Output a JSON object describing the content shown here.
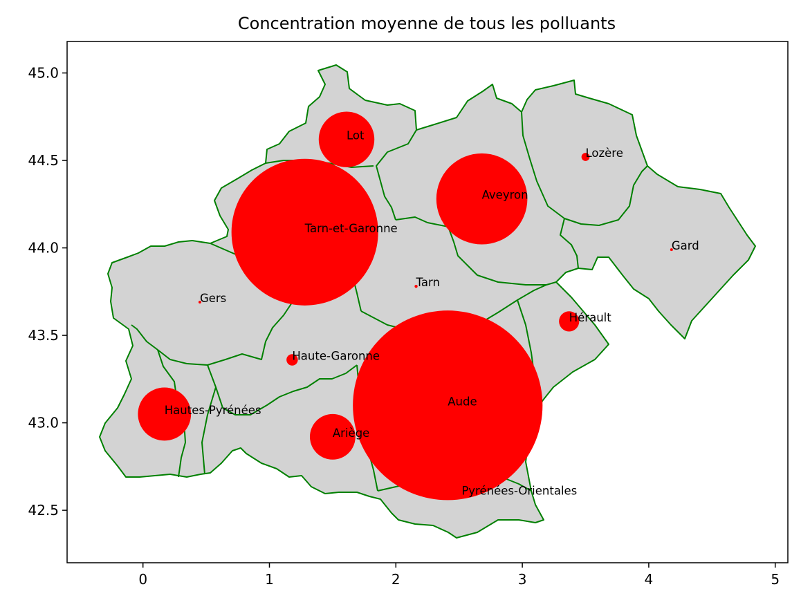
{
  "chart_data": {
    "type": "scatter",
    "title": "Concentration moyenne de tous les polluants",
    "xlabel": "",
    "ylabel": "",
    "xlim": [
      -0.6,
      5.1
    ],
    "ylim": [
      42.2,
      45.18
    ],
    "xticks": [
      0,
      1,
      2,
      3,
      4,
      5
    ],
    "xtick_labels": [
      "0",
      "1",
      "2",
      "3",
      "4",
      "5"
    ],
    "yticks": [
      42.5,
      43.0,
      43.5,
      44.0,
      44.5,
      45.0
    ],
    "ytick_labels": [
      "42.5",
      "43.0",
      "43.5",
      "44.0",
      "44.5",
      "45.0"
    ],
    "grid": false,
    "legend": "none",
    "map_fill": "#d3d3d3",
    "map_edge": "#008000",
    "marker_color": "#ff0000",
    "series": [
      {
        "points": [
          {
            "department": "Lot",
            "x": 1.61,
            "y": 44.62,
            "marker_radius_deg": 0.22
          },
          {
            "department": "Aveyron",
            "x": 2.68,
            "y": 44.28,
            "marker_radius_deg": 0.36
          },
          {
            "department": "Lozère",
            "x": 3.5,
            "y": 44.52,
            "marker_radius_deg": 0.032
          },
          {
            "department": "Tarn-et-Garonne",
            "x": 1.28,
            "y": 44.09,
            "marker_radius_deg": 0.58
          },
          {
            "department": "Gard",
            "x": 4.18,
            "y": 43.99,
            "marker_radius_deg": 0.008
          },
          {
            "department": "Tarn",
            "x": 2.16,
            "y": 43.78,
            "marker_radius_deg": 0.012
          },
          {
            "department": "Gers",
            "x": 0.45,
            "y": 43.69,
            "marker_radius_deg": 0.008
          },
          {
            "department": "Hérault",
            "x": 3.37,
            "y": 43.58,
            "marker_radius_deg": 0.08
          },
          {
            "department": "Haute-Garonne",
            "x": 1.18,
            "y": 43.36,
            "marker_radius_deg": 0.045
          },
          {
            "department": "Hautes-Pyrénées",
            "x": 0.17,
            "y": 43.05,
            "marker_radius_deg": 0.21
          },
          {
            "department": "Aude",
            "x": 2.41,
            "y": 43.1,
            "marker_radius_deg": 0.75
          },
          {
            "department": "Ariège",
            "x": 1.5,
            "y": 42.92,
            "marker_radius_deg": 0.18
          },
          {
            "department": "Pyrénées-Orientales",
            "x": 2.52,
            "y": 42.59,
            "marker_radius_deg": 0
          }
        ]
      }
    ]
  }
}
